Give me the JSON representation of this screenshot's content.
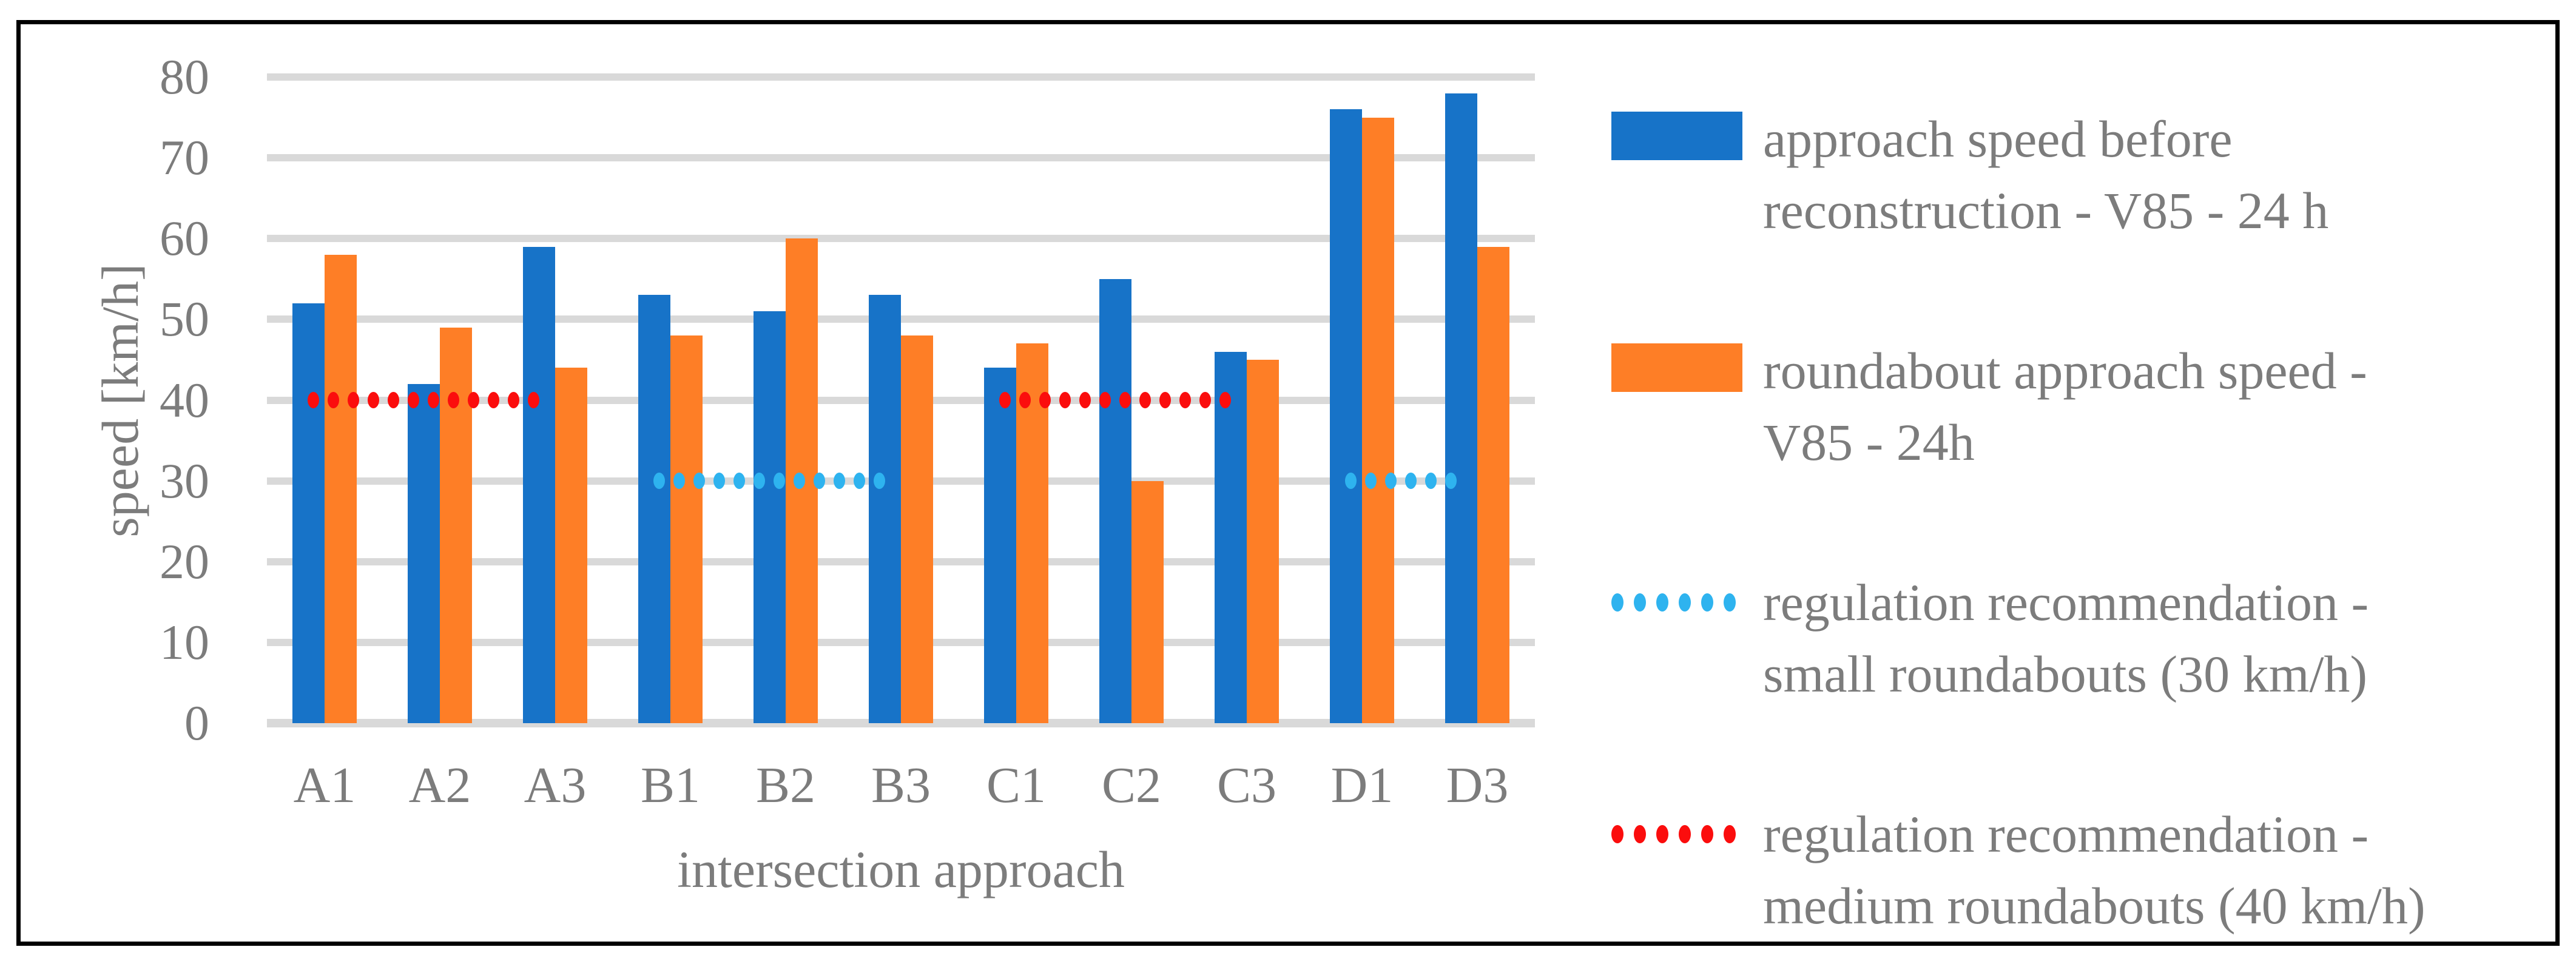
{
  "figure": {
    "background_color": "#FFFFFF",
    "border_color": "#000000",
    "text_color": "#7C7C7C",
    "gridline_color": "#D9D9D9"
  },
  "chart_data": {
    "type": "bar",
    "title": "",
    "xlabel": "intersection approach",
    "ylabel": "speed [km/h]",
    "ylim": [
      0,
      80
    ],
    "ytick_step": 10,
    "grid": true,
    "legend_position": "right",
    "categories": [
      "A1",
      "A2",
      "A3",
      "B1",
      "B2",
      "B3",
      "C1",
      "C2",
      "C3",
      "D1",
      "D3"
    ],
    "series": [
      {
        "name": "approach speed before reconstruction - V85 - 24 h",
        "color": "#1773C8",
        "values": [
          52,
          42,
          59,
          53,
          51,
          53,
          44,
          55,
          46,
          76,
          78
        ]
      },
      {
        "name": "roundabout approach speed - V85 - 24h",
        "color": "#FE7E26",
        "values": [
          58,
          49,
          44,
          48,
          60,
          48,
          47,
          30,
          45,
          75,
          59
        ]
      }
    ],
    "reference_lines": [
      {
        "name": "regulation recommendation - small roundabouts (30 km/h)",
        "value": 30,
        "color": "#2EB3EF",
        "style": "dotted",
        "segments": [
          {
            "from": "B1",
            "to": "B3"
          },
          {
            "from": "D1",
            "to": "D3"
          }
        ]
      },
      {
        "name": "regulation recommendation - medium roundabouts (40 km/h)",
        "value": 40,
        "color": "#FB0D0D",
        "style": "dotted",
        "segments": [
          {
            "from": "A1",
            "to": "A3"
          },
          {
            "from": "C1",
            "to": "C3"
          }
        ]
      }
    ]
  },
  "legend": {
    "items": [
      {
        "marker": "swatch",
        "color": "#1773C8",
        "lines": [
          "approach speed before",
          "reconstruction - V85 - 24 h"
        ]
      },
      {
        "marker": "swatch",
        "color": "#FE7E26",
        "lines": [
          "roundabout approach speed -",
          "V85 - 24h"
        ]
      },
      {
        "marker": "dots",
        "color": "#2EB3EF",
        "lines": [
          "regulation recommendation -",
          "small roundabouts (30 km/h)"
        ]
      },
      {
        "marker": "dots",
        "color": "#FB0D0D",
        "lines": [
          "regulation recommendation -",
          "medium roundabouts (40 km/h)"
        ]
      }
    ]
  }
}
